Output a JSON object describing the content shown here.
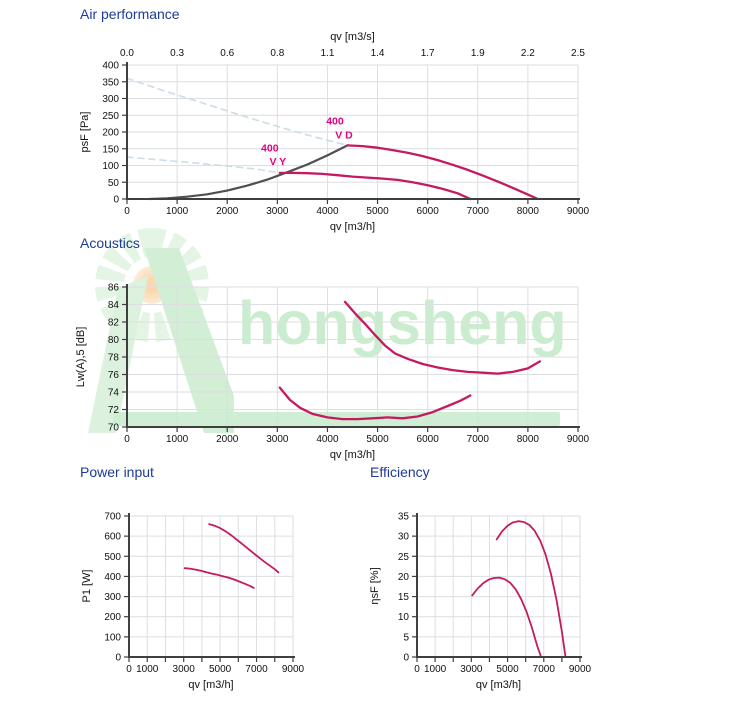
{
  "sections": {
    "air": {
      "title": "Air performance"
    },
    "acoustics": {
      "title": "Acoustics"
    },
    "power": {
      "title": "Power input"
    },
    "efficiency": {
      "title": "Efficiency"
    }
  },
  "watermark": {
    "text": "hongsheng"
  },
  "colors": {
    "title": "#1d3a96",
    "curve": "#c51a62",
    "annotation": "#e5007d",
    "system_curve": "#4f4f4f",
    "guide_dashed": "#ccdde6",
    "grid": "#dcdee0",
    "axis": "#3f3f3f",
    "tick_text": "#111111"
  },
  "chart_data": [
    {
      "id": "air",
      "type": "line",
      "title": "Air performance",
      "xlabel": "qv [m3/h]",
      "ylabel": "psF [Pa]",
      "xlim": [
        0,
        9000
      ],
      "ylim": [
        0,
        400
      ],
      "grid": true,
      "x_grid": [
        0,
        1000,
        2000,
        3000,
        4000,
        5000,
        6000,
        7000,
        8000,
        9000
      ],
      "x_ticks": [
        {
          "v": 0,
          "label": "0"
        },
        {
          "v": 1000,
          "label": "1000"
        },
        {
          "v": 2000,
          "label": "2000"
        },
        {
          "v": 3000,
          "label": "3000"
        },
        {
          "v": 4000,
          "label": "4000"
        },
        {
          "v": 5000,
          "label": "5000"
        },
        {
          "v": 6000,
          "label": "6000"
        },
        {
          "v": 7000,
          "label": "7000"
        },
        {
          "v": 8000,
          "label": "8000"
        },
        {
          "v": 9000,
          "label": "9000"
        }
      ],
      "y_ticks": [
        0,
        50,
        100,
        150,
        200,
        250,
        300,
        350,
        400
      ],
      "x_top": {
        "title": "qv [m3/s]",
        "ticks": [
          {
            "v": 0,
            "label": "0.0"
          },
          {
            "v": 1000,
            "label": "0.3"
          },
          {
            "v": 2000,
            "label": "0.6"
          },
          {
            "v": 3000,
            "label": "0.8"
          },
          {
            "v": 4000,
            "label": "1.1"
          },
          {
            "v": 5000,
            "label": "1.4"
          },
          {
            "v": 6000,
            "label": "1.7"
          },
          {
            "v": 7000,
            "label": "1.9"
          },
          {
            "v": 8000,
            "label": "2.2"
          },
          {
            "v": 9000,
            "label": "2.5"
          }
        ]
      },
      "series": [
        {
          "name": "guide-vd",
          "color": "#ccdde6",
          "dash": "dashed",
          "width": 1.6,
          "points": [
            [
              0,
              360
            ],
            [
              800,
              320
            ],
            [
              1600,
              282
            ],
            [
              2400,
              244
            ],
            [
              3200,
              208
            ],
            [
              3800,
              183
            ],
            [
              4400,
              160
            ]
          ]
        },
        {
          "name": "guide-vy",
          "color": "#ccdde6",
          "dash": "dashed",
          "width": 1.6,
          "points": [
            [
              0,
              125
            ],
            [
              700,
              116
            ],
            [
              1400,
              107
            ],
            [
              2100,
              97
            ],
            [
              2600,
              89
            ],
            [
              3050,
              78
            ]
          ]
        },
        {
          "name": "system-resistance",
          "color": "#4f4f4f",
          "dash": "solid",
          "width": 2.2,
          "points": [
            [
              450,
              0
            ],
            [
              800,
              2
            ],
            [
              1200,
              7
            ],
            [
              1600,
              14
            ],
            [
              2000,
              25
            ],
            [
              2400,
              40
            ],
            [
              2800,
              58
            ],
            [
              3200,
              80
            ],
            [
              3600,
              103
            ],
            [
              4000,
              130
            ],
            [
              4400,
              160
            ]
          ]
        },
        {
          "name": "400 V D",
          "color": "#c51a62",
          "dash": "solid",
          "width": 2.3,
          "points": [
            [
              4400,
              160
            ],
            [
              4700,
              158
            ],
            [
              5000,
              153
            ],
            [
              5300,
              146
            ],
            [
              5600,
              138
            ],
            [
              5900,
              128
            ],
            [
              6200,
              116
            ],
            [
              6500,
              102
            ],
            [
              6800,
              87
            ],
            [
              7100,
              70
            ],
            [
              7400,
              52
            ],
            [
              7700,
              33
            ],
            [
              8000,
              13
            ],
            [
              8200,
              0
            ]
          ]
        },
        {
          "name": "400 V Y",
          "color": "#c51a62",
          "dash": "solid",
          "width": 2.3,
          "points": [
            [
              3050,
              78
            ],
            [
              3300,
              78
            ],
            [
              3600,
              77
            ],
            [
              3900,
              75
            ],
            [
              4200,
              71
            ],
            [
              4500,
              67
            ],
            [
              4800,
              64
            ],
            [
              5100,
              61
            ],
            [
              5400,
              57
            ],
            [
              5700,
              50
            ],
            [
              6000,
              41
            ],
            [
              6300,
              30
            ],
            [
              6600,
              17
            ],
            [
              6850,
              0
            ]
          ]
        }
      ],
      "annotations": [
        {
          "text": "400",
          "x": 4150,
          "y": 222,
          "color": "#e5007d"
        },
        {
          "text": "V D",
          "x": 4330,
          "y": 180,
          "color": "#e5007d"
        },
        {
          "text": "400",
          "x": 2850,
          "y": 142,
          "color": "#e5007d"
        },
        {
          "text": "V Y",
          "x": 3010,
          "y": 101,
          "color": "#e5007d"
        }
      ]
    },
    {
      "id": "acoustics",
      "type": "line",
      "title": "Acoustics",
      "xlabel": "qv [m3/h]",
      "ylabel": "Lw(A),5 [dB]",
      "xlim": [
        0,
        9000
      ],
      "ylim": [
        70,
        86
      ],
      "grid": true,
      "x_grid": [
        0,
        1000,
        2000,
        3000,
        4000,
        5000,
        6000,
        7000,
        8000,
        9000
      ],
      "x_ticks": [
        {
          "v": 0,
          "label": "0"
        },
        {
          "v": 1000,
          "label": "1000"
        },
        {
          "v": 2000,
          "label": "2000"
        },
        {
          "v": 3000,
          "label": "3000"
        },
        {
          "v": 4000,
          "label": "4000"
        },
        {
          "v": 5000,
          "label": "5000"
        },
        {
          "v": 6000,
          "label": "6000"
        },
        {
          "v": 7000,
          "label": "7000"
        },
        {
          "v": 8000,
          "label": "8000"
        },
        {
          "v": 9000,
          "label": "9000"
        }
      ],
      "y_ticks": [
        70,
        72,
        74,
        76,
        78,
        80,
        82,
        84,
        86
      ],
      "series": [
        {
          "name": "400 V D",
          "color": "#c51a62",
          "dash": "solid",
          "width": 2.3,
          "points": [
            [
              4350,
              84.3
            ],
            [
              4550,
              83.0
            ],
            [
              4750,
              81.8
            ],
            [
              4950,
              80.5
            ],
            [
              5150,
              79.3
            ],
            [
              5350,
              78.4
            ],
            [
              5600,
              77.8
            ],
            [
              5900,
              77.2
            ],
            [
              6200,
              76.8
            ],
            [
              6500,
              76.5
            ],
            [
              6800,
              76.3
            ],
            [
              7100,
              76.2
            ],
            [
              7400,
              76.1
            ],
            [
              7700,
              76.3
            ],
            [
              8000,
              76.7
            ],
            [
              8240,
              77.5
            ]
          ]
        },
        {
          "name": "400 V Y",
          "color": "#c51a62",
          "dash": "solid",
          "width": 2.3,
          "points": [
            [
              3050,
              74.5
            ],
            [
              3250,
              73.1
            ],
            [
              3450,
              72.2
            ],
            [
              3700,
              71.5
            ],
            [
              4000,
              71.1
            ],
            [
              4300,
              70.9
            ],
            [
              4600,
              70.9
            ],
            [
              4900,
              71.0
            ],
            [
              5200,
              71.1
            ],
            [
              5500,
              71.0
            ],
            [
              5800,
              71.2
            ],
            [
              6100,
              71.7
            ],
            [
              6400,
              72.4
            ],
            [
              6650,
              73.0
            ],
            [
              6850,
              73.6
            ]
          ]
        }
      ],
      "annotations": []
    },
    {
      "id": "power",
      "type": "line",
      "title": "Power input",
      "xlabel": "qv [m3/h]",
      "ylabel": "P1 [W]",
      "xlim": [
        0,
        9000
      ],
      "ylim": [
        0,
        700
      ],
      "grid": true,
      "x_grid": [
        0,
        1000,
        2000,
        3000,
        4000,
        5000,
        6000,
        7000,
        8000,
        9000
      ],
      "x_ticks": [
        {
          "v": 0,
          "label": "0"
        },
        {
          "v": 1000,
          "label": "1000"
        },
        {
          "v": 3000,
          "label": "3000"
        },
        {
          "v": 5000,
          "label": "5000"
        },
        {
          "v": 7000,
          "label": "7000"
        },
        {
          "v": 9000,
          "label": "9000"
        }
      ],
      "y_ticks": [
        0,
        100,
        200,
        300,
        400,
        500,
        600,
        700
      ],
      "series": [
        {
          "name": "400 V D",
          "color": "#c51a62",
          "dash": "solid",
          "width": 1.8,
          "points": [
            [
              4400,
              660
            ],
            [
              4700,
              652
            ],
            [
              5000,
              640
            ],
            [
              5300,
              624
            ],
            [
              5600,
              605
            ],
            [
              5900,
              584
            ],
            [
              6200,
              562
            ],
            [
              6500,
              540
            ],
            [
              6800,
              518
            ],
            [
              7100,
              496
            ],
            [
              7400,
              475
            ],
            [
              7700,
              455
            ],
            [
              8000,
              436
            ],
            [
              8200,
              420
            ]
          ]
        },
        {
          "name": "400 V Y",
          "color": "#c51a62",
          "dash": "solid",
          "width": 1.8,
          "points": [
            [
              3050,
              441
            ],
            [
              3350,
              439
            ],
            [
              3650,
              434
            ],
            [
              3950,
              428
            ],
            [
              4250,
              421
            ],
            [
              4550,
              414
            ],
            [
              4850,
              408
            ],
            [
              5150,
              401
            ],
            [
              5450,
              394
            ],
            [
              5750,
              385
            ],
            [
              6050,
              375
            ],
            [
              6350,
              364
            ],
            [
              6650,
              352
            ],
            [
              6850,
              343
            ]
          ]
        }
      ],
      "annotations": []
    },
    {
      "id": "efficiency",
      "type": "line",
      "title": "Efficiency",
      "xlabel": "qv [m3/h]",
      "ylabel": "ηsF [%]",
      "xlim": [
        0,
        9000
      ],
      "ylim": [
        0,
        35
      ],
      "grid": true,
      "x_grid": [
        0,
        1000,
        2000,
        3000,
        4000,
        5000,
        6000,
        7000,
        8000,
        9000
      ],
      "x_ticks": [
        {
          "v": 0,
          "label": "0"
        },
        {
          "v": 1000,
          "label": "1000"
        },
        {
          "v": 3000,
          "label": "3000"
        },
        {
          "v": 5000,
          "label": "5000"
        },
        {
          "v": 7000,
          "label": "7000"
        },
        {
          "v": 9000,
          "label": "9000"
        }
      ],
      "y_ticks": [
        0,
        5,
        10,
        15,
        20,
        25,
        30,
        35
      ],
      "series": [
        {
          "name": "400 V D",
          "color": "#c51a62",
          "dash": "solid",
          "width": 1.8,
          "points": [
            [
              4400,
              29.2
            ],
            [
              4700,
              31.2
            ],
            [
              5000,
              32.6
            ],
            [
              5300,
              33.4
            ],
            [
              5600,
              33.7
            ],
            [
              5900,
              33.5
            ],
            [
              6200,
              32.8
            ],
            [
              6500,
              31.3
            ],
            [
              6800,
              28.9
            ],
            [
              7100,
              25.4
            ],
            [
              7400,
              20.6
            ],
            [
              7700,
              14.2
            ],
            [
              8000,
              6.3
            ],
            [
              8200,
              0
            ]
          ]
        },
        {
          "name": "400 V Y",
          "color": "#c51a62",
          "dash": "solid",
          "width": 1.8,
          "points": [
            [
              3050,
              15.3
            ],
            [
              3350,
              17.0
            ],
            [
              3650,
              18.3
            ],
            [
              3950,
              19.2
            ],
            [
              4250,
              19.6
            ],
            [
              4550,
              19.7
            ],
            [
              4850,
              19.3
            ],
            [
              5150,
              18.4
            ],
            [
              5450,
              16.8
            ],
            [
              5750,
              14.4
            ],
            [
              6050,
              11.2
            ],
            [
              6350,
              7.2
            ],
            [
              6650,
              2.6
            ],
            [
              6850,
              0
            ]
          ]
        }
      ],
      "annotations": []
    }
  ]
}
